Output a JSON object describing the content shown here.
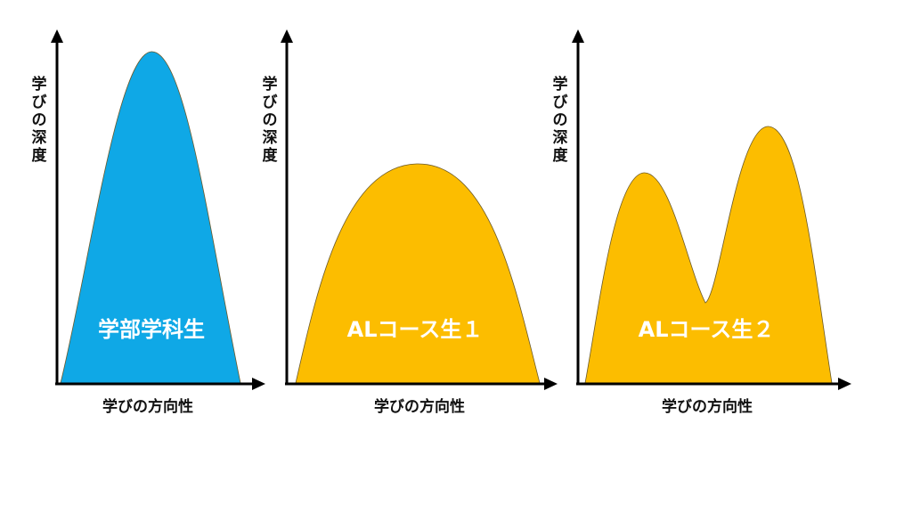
{
  "colors": {
    "undergrad": "#0fa8e6",
    "al_course": "#fcbd00",
    "axis": "#000000",
    "label_text": "#ffffff"
  },
  "panels": [
    {
      "id": "panel-1",
      "y_axis_label": "学びの深度",
      "x_axis_label": "学びの方向性",
      "area_label": "学部学科生",
      "fill_key": "undergrad"
    },
    {
      "id": "panel-2",
      "y_axis_label": "学びの深度",
      "x_axis_label": "学びの方向性",
      "area_label": "ALコース生１",
      "fill_key": "al_course"
    },
    {
      "id": "panel-3",
      "y_axis_label": "学びの深度",
      "x_axis_label": "学びの方向性",
      "area_label": "ALコース生２",
      "fill_key": "al_course"
    }
  ]
}
